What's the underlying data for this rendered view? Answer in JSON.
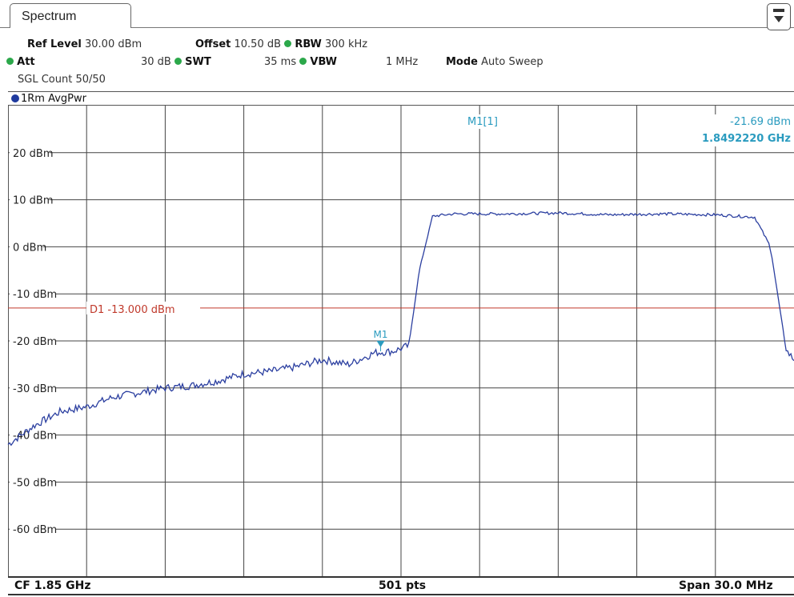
{
  "tab": {
    "title": "Spectrum"
  },
  "header": {
    "ref_level_label": "Ref Level",
    "ref_level_value": "30.00 dBm",
    "offset_label": "Offset",
    "offset_value": "10.50 dB",
    "rbw_label": "RBW",
    "rbw_value": "300 kHz",
    "att_label": "Att",
    "att_value": "30 dB",
    "swt_label": "SWT",
    "swt_value": "35 ms",
    "vbw_label": "VBW",
    "vbw_value": "1 MHz",
    "mode_label": "Mode",
    "mode_value": "Auto Sweep",
    "sgl_count": "SGL Count 50/50"
  },
  "trace": {
    "label": "1Rm AvgPwr"
  },
  "marker": {
    "name": "M1[1]",
    "level": "-21.69 dBm",
    "frequency": "1.8492220 GHz",
    "tag": "M1"
  },
  "display_line": {
    "label": "D1  -13.000 dBm"
  },
  "footer": {
    "cf": "CF 1.85 GHz",
    "points": "501 pts",
    "span": "Span 30.0 MHz"
  },
  "colors": {
    "trace": "#2b3fa0",
    "display_line": "#c0392b",
    "marker": "#2a9bbf",
    "status_dot": "#2ba84a"
  },
  "chart_data": {
    "type": "line",
    "y_tick_labels": [
      "20 dBm",
      "10 dBm",
      "0 dBm",
      "-10 dBm",
      "-20 dBm",
      "-30 dBm",
      "-40 dBm",
      "-50 dBm",
      "-60 dBm"
    ],
    "ylim": [
      -70,
      30
    ],
    "xlim": [
      1.835,
      1.865
    ],
    "grid": true,
    "threshold_dbm": -13.0,
    "marker_point": {
      "x": 1.849222,
      "y": -21.69
    },
    "series": [
      {
        "x": [
          1.835,
          1.836,
          1.837,
          1.838,
          1.839,
          1.84,
          1.841,
          1.842,
          1.843,
          1.844,
          1.845,
          1.846,
          1.847,
          1.848,
          1.849,
          1.8497,
          1.8503,
          1.8507,
          1.8512,
          1.852,
          1.854,
          1.856,
          1.858,
          1.86,
          1.862,
          1.8635,
          1.8641,
          1.8647,
          1.865
        ],
        "y": [
          -42,
          -38,
          -35,
          -34,
          -32,
          -31,
          -30,
          -29.5,
          -28.5,
          -27,
          -26.5,
          -25.5,
          -24,
          -25,
          -22.5,
          -22.2,
          -21,
          -5,
          6.5,
          7,
          7,
          7.2,
          6.8,
          7,
          6.8,
          6.3,
          0,
          -22,
          -24
        ]
      }
    ]
  }
}
